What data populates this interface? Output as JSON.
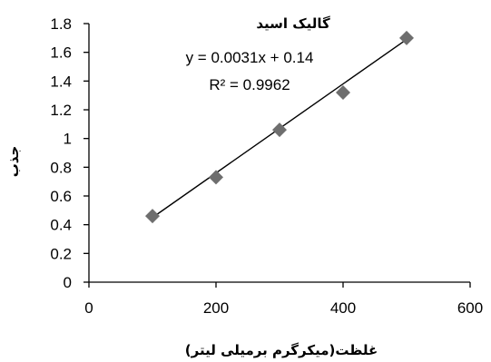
{
  "chart_data": {
    "type": "scatter",
    "title": "گالیک اسید",
    "xlabel": "غلظت(میکرگرم برمیلی لیتر)",
    "ylabel": "جذب",
    "xlim": [
      0,
      600
    ],
    "ylim": [
      0,
      1.8
    ],
    "x_ticks": [
      "0",
      "200",
      "400",
      "600"
    ],
    "y_ticks": [
      "0",
      "0.2",
      "0.4",
      "0.6",
      "0.8",
      "1",
      "1.2",
      "1.4",
      "1.6",
      "1.8"
    ],
    "grid": false,
    "series": [
      {
        "points": [
          {
            "x": 100,
            "y": 0.46
          },
          {
            "x": 200,
            "y": 0.73
          },
          {
            "x": 300,
            "y": 1.06
          },
          {
            "x": 400,
            "y": 1.32
          },
          {
            "x": 500,
            "y": 1.7
          }
        ],
        "marker": "diamond",
        "color": "#6e6e6e"
      }
    ],
    "trendline": {
      "slope": 0.0031,
      "intercept": 0.14,
      "x_range": [
        100,
        500
      ],
      "equation": "y = 0.0031x + 0.14",
      "r_squared": "R² = 0.9962",
      "color": "#000000"
    }
  }
}
